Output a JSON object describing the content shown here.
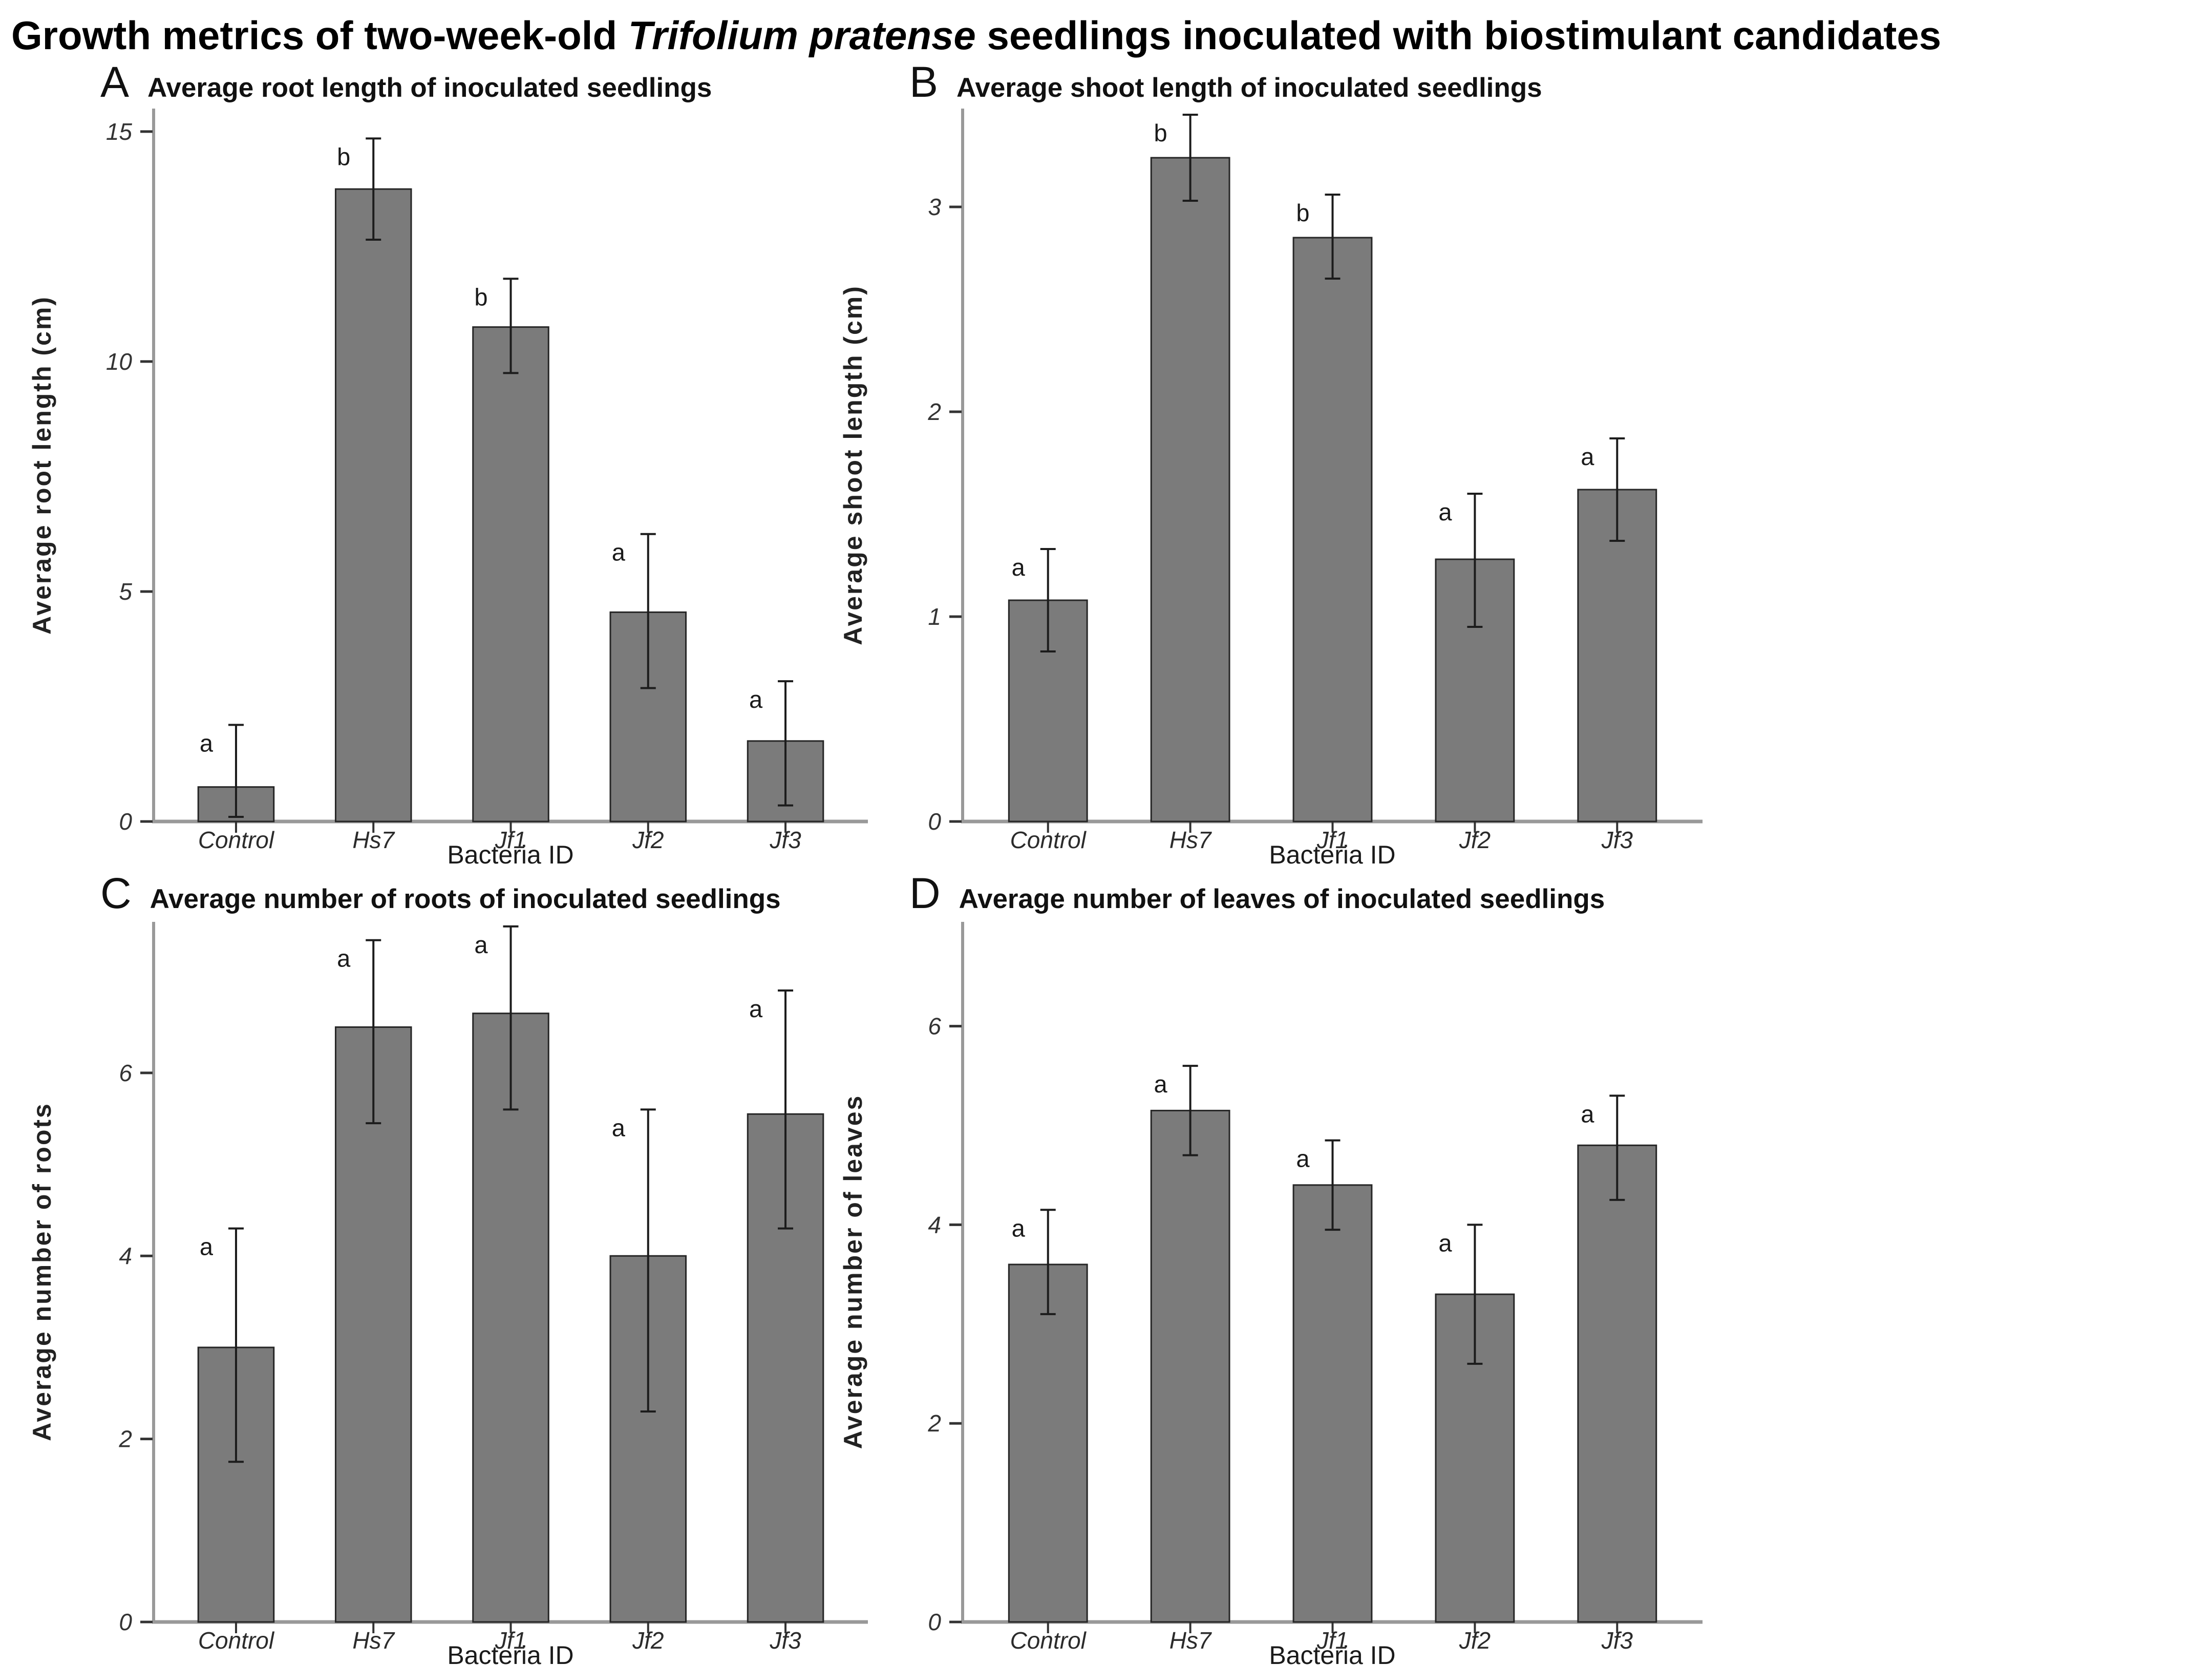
{
  "figure_title": {
    "prefix": "Growth metrics of two-week-old ",
    "italic": "Trifolium pratense",
    "suffix": " seedlings inoculated with biostimulant candidates"
  },
  "colors": {
    "bar_fill": "#7b7b7b",
    "bar_stroke": "#262626",
    "error_bar": "#1c1c1c",
    "axis_line": "#999999",
    "tick_mark": "#333333"
  },
  "chart_data": [
    {
      "type": "bar",
      "panel_label": "A",
      "title": "Average root length of inoculated seedlings",
      "xlabel": "Bacteria ID",
      "ylabel": "Average root length (cm)",
      "categories": [
        "Control",
        "Hs7",
        "Jf1",
        "Jf2",
        "Jf3"
      ],
      "values": [
        0.75,
        13.75,
        10.75,
        4.55,
        1.75
      ],
      "error_low": [
        0.1,
        12.65,
        9.75,
        2.9,
        0.35
      ],
      "error_high": [
        2.1,
        14.85,
        11.8,
        6.25,
        3.05
      ],
      "sig_letters": [
        "a",
        "b",
        "b",
        "a",
        "a"
      ],
      "yticks": [
        0,
        5,
        10,
        15
      ],
      "ylim": [
        0,
        15.5
      ],
      "grid": "off",
      "legend": "none"
    },
    {
      "type": "bar",
      "panel_label": "B",
      "title": "Average shoot length of inoculated seedlings",
      "xlabel": "Bacteria ID",
      "ylabel": "Average shoot length (cm)",
      "categories": [
        "Control",
        "Hs7",
        "Jf1",
        "Jf2",
        "Jf3"
      ],
      "values": [
        1.08,
        3.24,
        2.85,
        1.28,
        1.62
      ],
      "error_low": [
        0.83,
        3.03,
        2.65,
        0.95,
        1.37
      ],
      "error_high": [
        1.33,
        3.45,
        3.06,
        1.6,
        1.87
      ],
      "sig_letters": [
        "a",
        "b",
        "b",
        "a",
        "a"
      ],
      "yticks": [
        0,
        1,
        2,
        3
      ],
      "ylim": [
        0,
        3.48
      ],
      "grid": "off",
      "legend": "none"
    },
    {
      "type": "bar",
      "panel_label": "C",
      "title": "Average number of roots of inoculated seedlings",
      "xlabel": "Bacteria ID",
      "ylabel": "Average number of roots",
      "categories": [
        "Control",
        "Hs7",
        "Jf1",
        "Jf2",
        "Jf3"
      ],
      "values": [
        3.0,
        6.5,
        6.65,
        4.0,
        5.55
      ],
      "error_low": [
        1.75,
        5.45,
        5.6,
        2.3,
        4.3
      ],
      "error_high": [
        4.3,
        7.45,
        7.6,
        5.6,
        6.9
      ],
      "sig_letters": [
        "a",
        "a",
        "a",
        "a",
        "a"
      ],
      "yticks": [
        0,
        2,
        4,
        6
      ],
      "ylim": [
        0,
        7.65
      ],
      "grid": "off",
      "legend": "none"
    },
    {
      "type": "bar",
      "panel_label": "D",
      "title": "Average number of leaves of inoculated seedlings",
      "xlabel": "Bacteria ID",
      "ylabel": "Average number of leaves",
      "categories": [
        "Control",
        "Hs7",
        "Jf1",
        "Jf2",
        "Jf3"
      ],
      "values": [
        3.6,
        5.15,
        4.4,
        3.3,
        4.8
      ],
      "error_low": [
        3.1,
        4.7,
        3.95,
        2.6,
        4.25
      ],
      "error_high": [
        4.15,
        5.6,
        4.85,
        4.0,
        5.3
      ],
      "sig_letters": [
        "a",
        "a",
        "a",
        "a",
        "a"
      ],
      "yticks": [
        0,
        2,
        4,
        6
      ],
      "ylim": [
        0,
        7.05
      ],
      "grid": "off",
      "legend": "none"
    }
  ]
}
